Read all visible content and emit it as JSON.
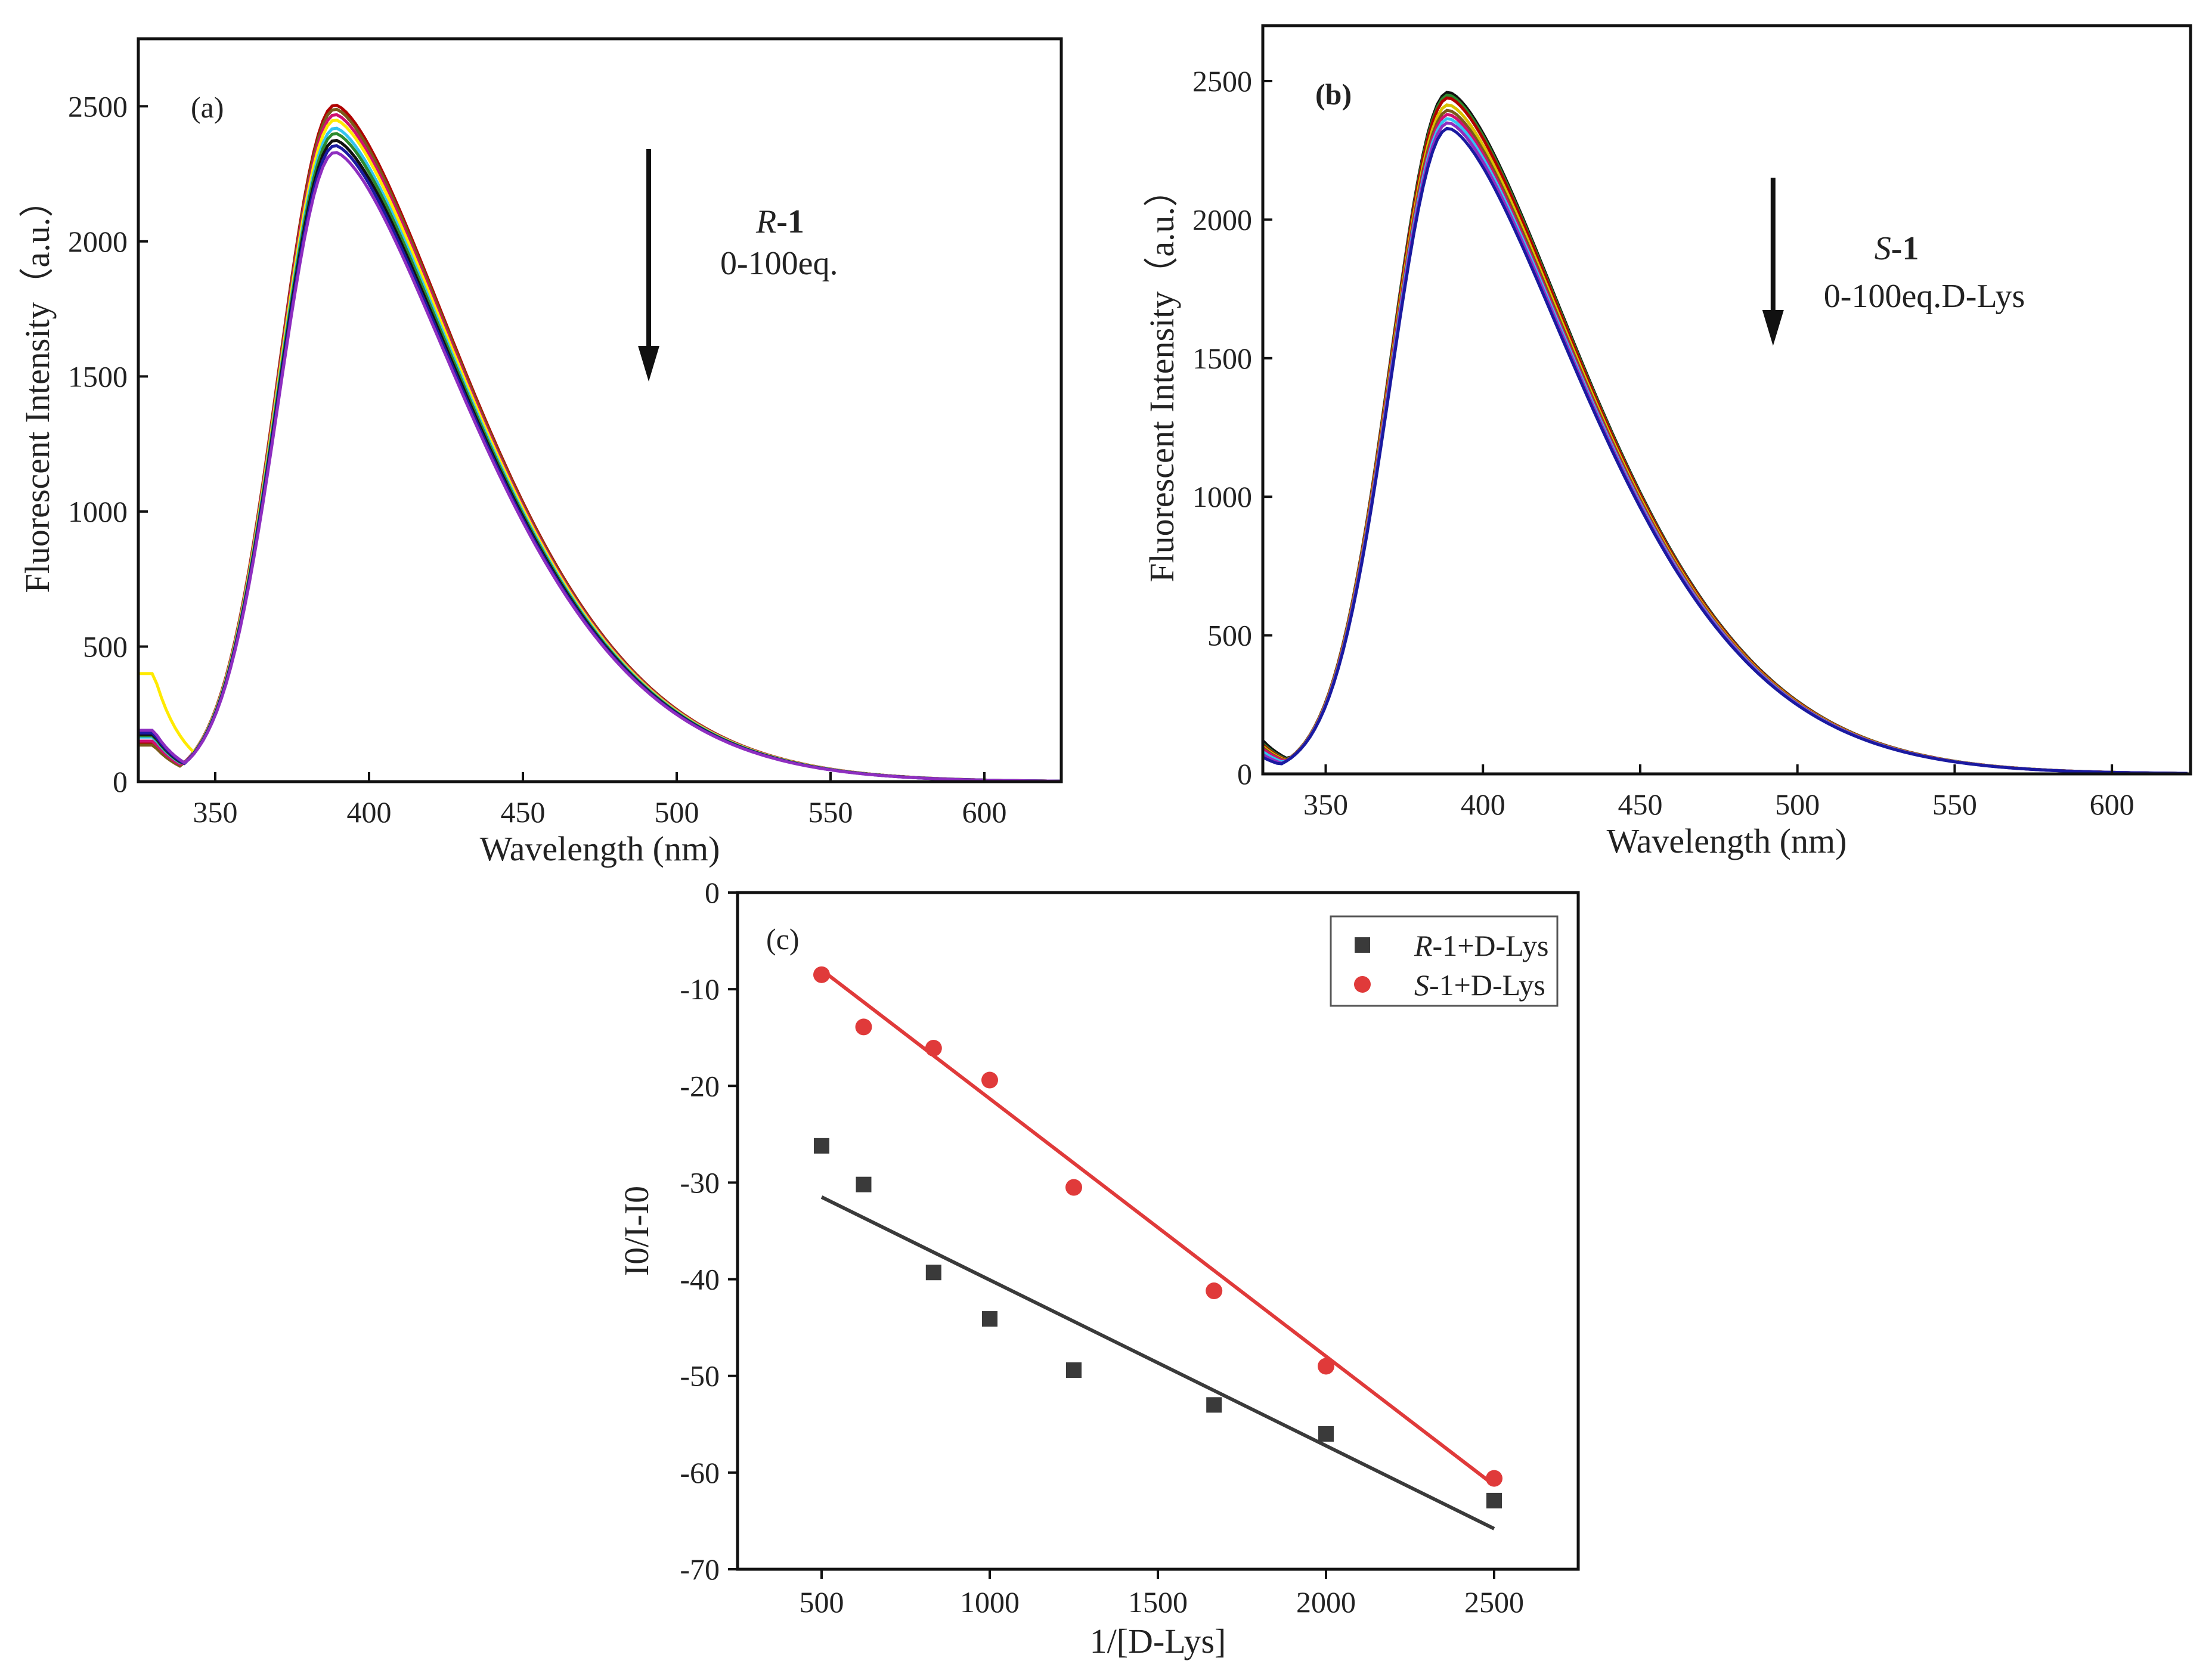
{
  "chart_data": [
    {
      "id": "a",
      "type": "line",
      "panel_label": "(a)",
      "xlabel": "Wavelength (nm)",
      "ylabel": "Fluorescent Intensity（a.u.）",
      "xlim": [
        325,
        625
      ],
      "ylim": [
        0,
        2750
      ],
      "xticks": [
        350,
        400,
        450,
        500,
        550,
        600
      ],
      "yticks": [
        0,
        500,
        1000,
        1500,
        2000,
        2500
      ],
      "annotation_line1_italic": "R",
      "annotation_line1_rest": "-1",
      "annotation_line2": "0-100eq.",
      "arrow": "down",
      "series": [
        {
          "color": "#b00000",
          "peak": 2505,
          "base": 140
        },
        {
          "color": "#7a5a1a",
          "peak": 2490,
          "base": 135
        },
        {
          "color": "#d01070",
          "peak": 2470,
          "base": 150
        },
        {
          "color": "#ffea00",
          "peak": 2450,
          "base": 400
        },
        {
          "color": "#33c4f0",
          "peak": 2420,
          "base": 165
        },
        {
          "color": "#2d8a2d",
          "peak": 2400,
          "base": 170
        },
        {
          "color": "#111111",
          "peak": 2375,
          "base": 175
        },
        {
          "color": "#1a1aa0",
          "peak": 2355,
          "base": 180
        },
        {
          "color": "#8e2ec0",
          "peak": 2330,
          "base": 190
        }
      ]
    },
    {
      "id": "b",
      "type": "line",
      "panel_label": "(b)",
      "xlabel": "Wavelength (nm)",
      "ylabel": "Fluorescent Intensity（a.u.）",
      "xlim": [
        330,
        625
      ],
      "ylim": [
        0,
        2700
      ],
      "xticks": [
        350,
        400,
        450,
        500,
        550,
        600
      ],
      "yticks": [
        0,
        500,
        1000,
        1500,
        2000,
        2500
      ],
      "annotation_line1_italic": "S",
      "annotation_line1_rest": "-1",
      "annotation_line2": "0-100eq.D-Lys",
      "arrow": "down",
      "series": [
        {
          "color": "#111111",
          "peak": 2460,
          "base": 120
        },
        {
          "color": "#2d8a2d",
          "peak": 2450,
          "base": 110
        },
        {
          "color": "#b00000",
          "peak": 2440,
          "base": 105
        },
        {
          "color": "#d9c200",
          "peak": 2415,
          "base": 100
        },
        {
          "color": "#7a5a1a",
          "peak": 2395,
          "base": 95
        },
        {
          "color": "#d01070",
          "peak": 2380,
          "base": 90
        },
        {
          "color": "#33c4f0",
          "peak": 2365,
          "base": 80
        },
        {
          "color": "#8e2ec0",
          "peak": 2350,
          "base": 70
        },
        {
          "color": "#1a1aa0",
          "peak": 2330,
          "base": 60
        }
      ]
    },
    {
      "id": "c",
      "type": "scatter",
      "panel_label": "(c)",
      "xlabel": "1/[D-Lys]",
      "ylabel": "I0/I-I0",
      "xlim": [
        250,
        2750
      ],
      "ylim": [
        -70,
        0
      ],
      "xticks": [
        500,
        1000,
        1500,
        2000,
        2500
      ],
      "yticks": [
        0,
        -10,
        -20,
        -30,
        -40,
        -50,
        -60,
        -70
      ],
      "legend_position": "top-right",
      "series": [
        {
          "name_italic": "R",
          "name_rest": "-1+D-Lys",
          "color": "#3a3a3a",
          "marker": "square",
          "x": [
            500,
            625,
            833,
            1000,
            1250,
            1667,
            2000,
            2500
          ],
          "y": [
            -26.2,
            -30.2,
            -39.3,
            -44.1,
            -49.4,
            -53.0,
            -56.0,
            -62.9
          ],
          "fit": {
            "x": [
              500,
              2500
            ],
            "y": [
              -31.5,
              -65.8
            ]
          }
        },
        {
          "name_italic": "S",
          "name_rest": "-1+D-Lys",
          "color": "#e03a3a",
          "marker": "circle",
          "x": [
            500,
            625,
            833,
            1000,
            1250,
            1667,
            2000,
            2500
          ],
          "y": [
            -8.5,
            -13.9,
            -16.1,
            -19.4,
            -30.5,
            -41.2,
            -49.0,
            -60.6
          ],
          "fit": {
            "x": [
              500,
              2500
            ],
            "y": [
              -8.0,
              -61.3
            ]
          }
        }
      ]
    }
  ]
}
